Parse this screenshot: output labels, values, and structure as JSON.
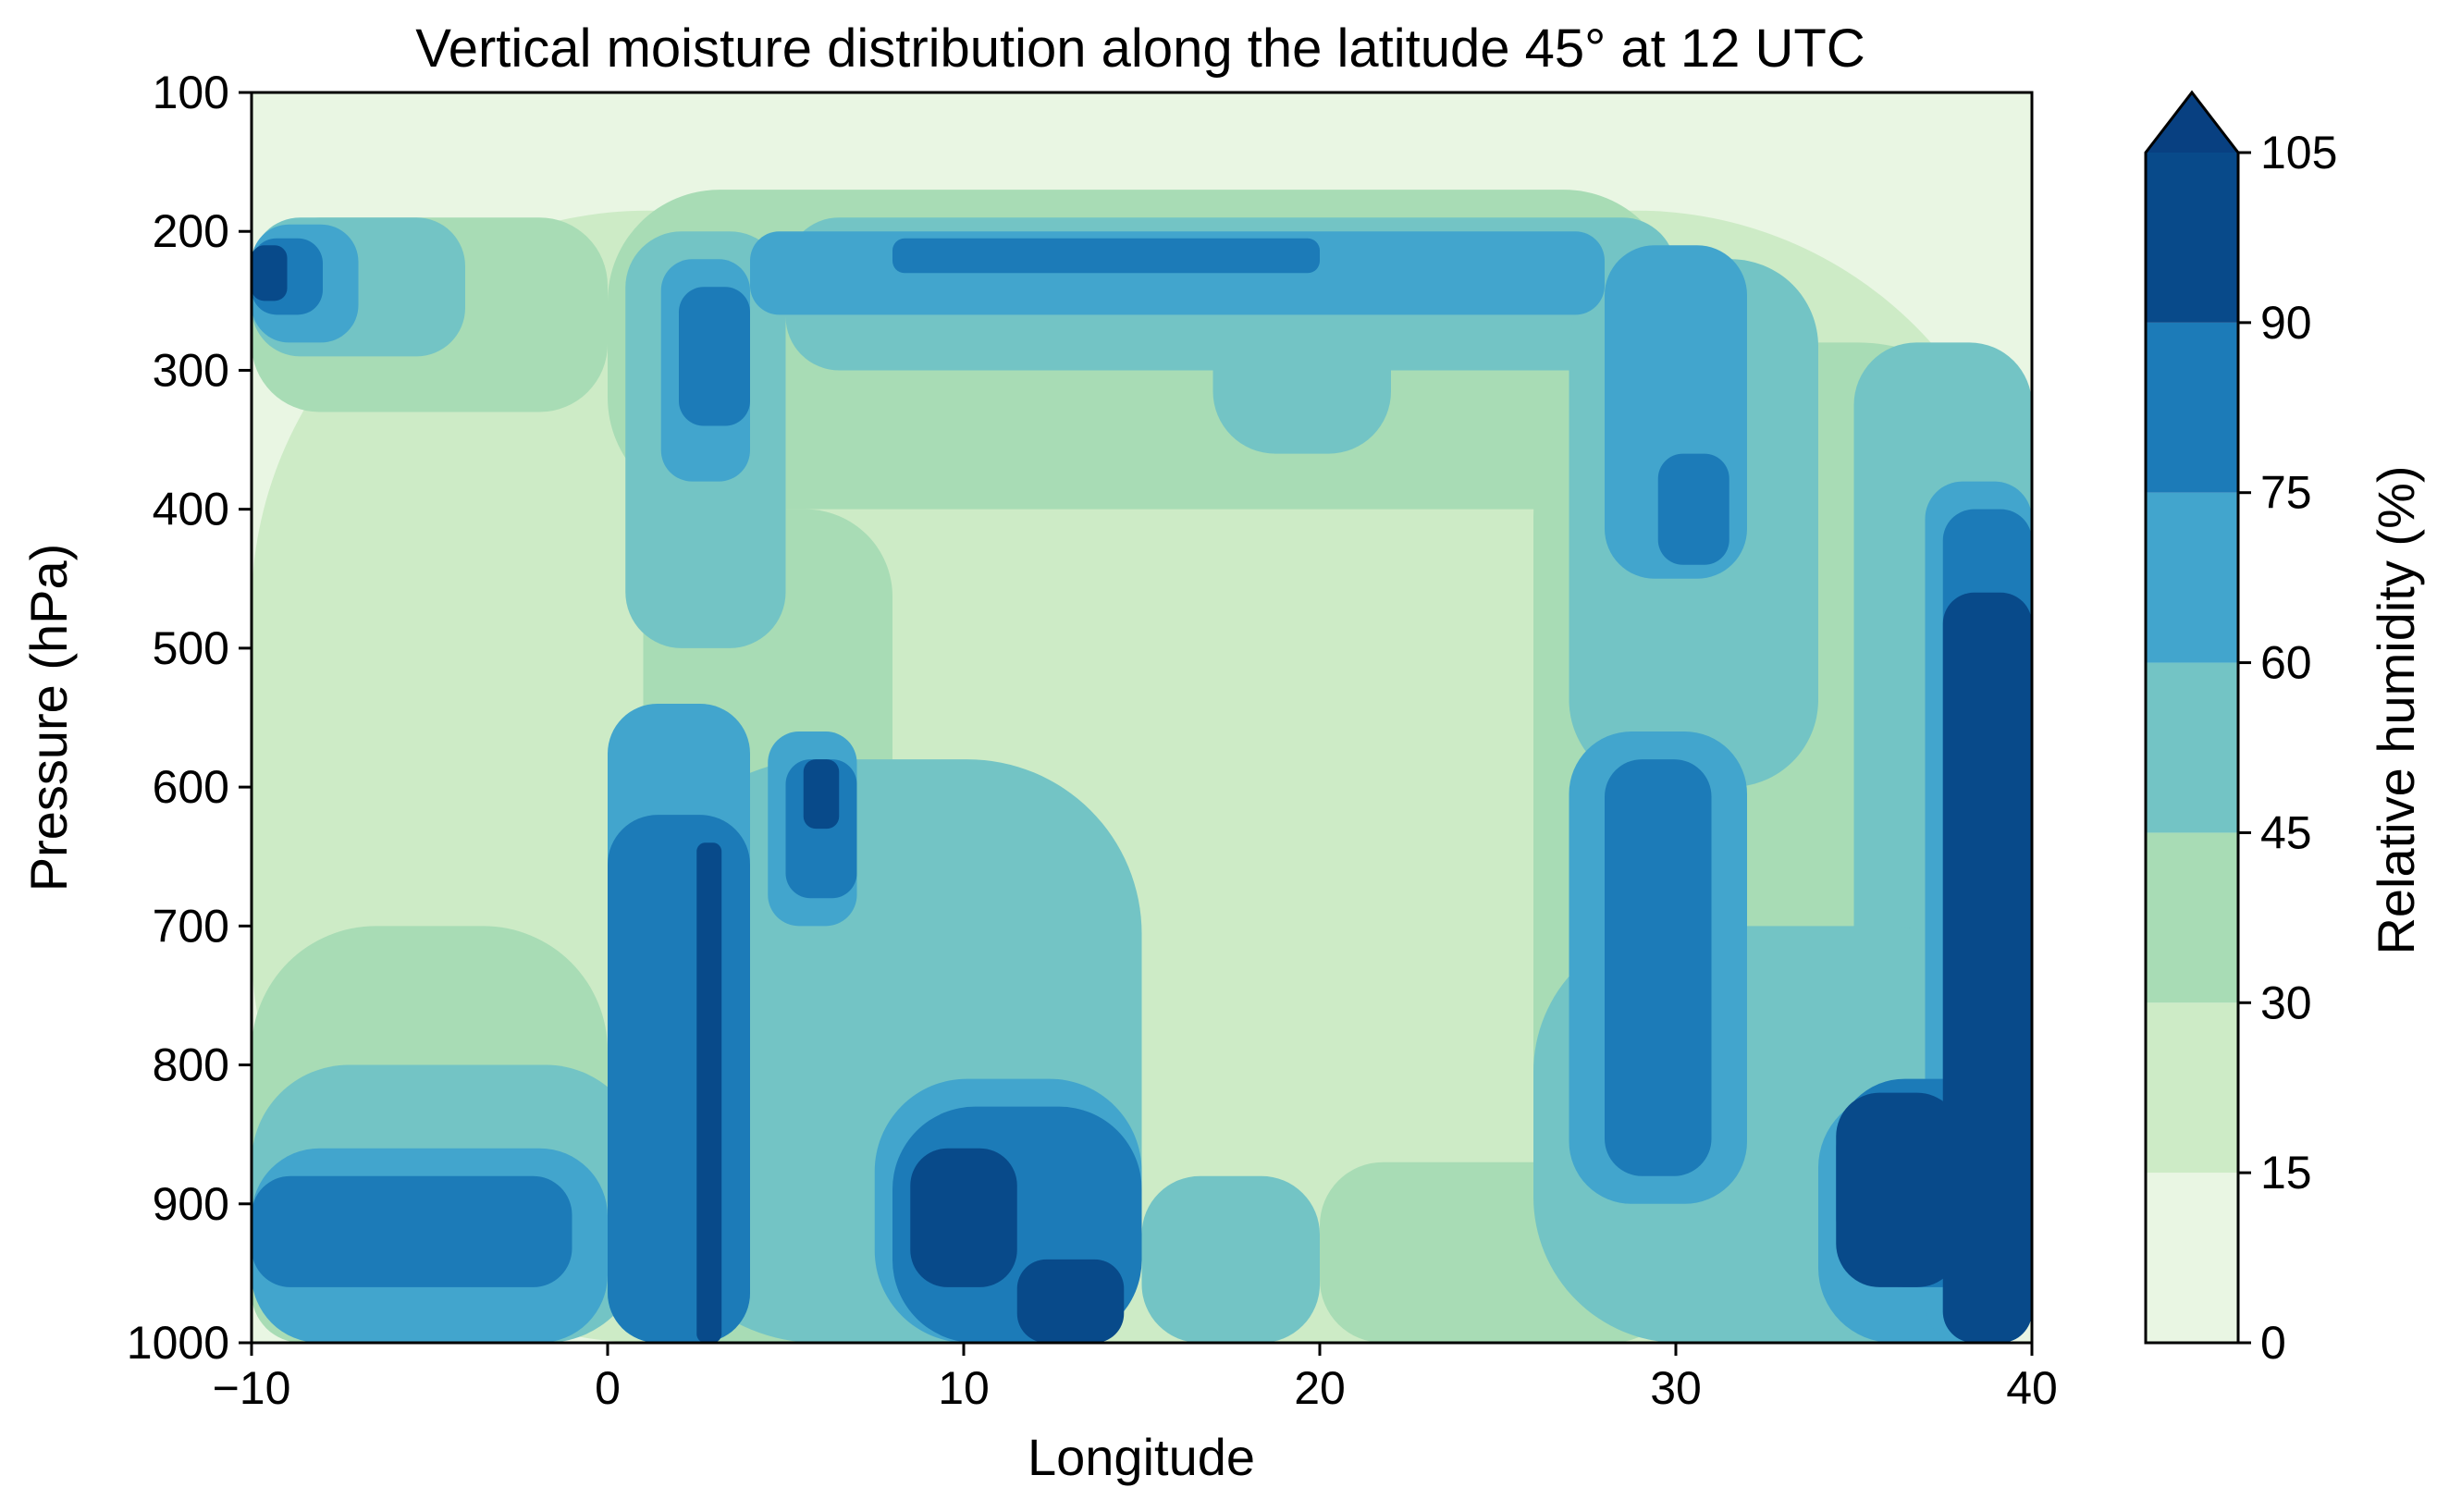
{
  "chart_data": {
    "type": "heatmap",
    "subtype": "filled-contour",
    "title": "Vertical moisture distribution along the latitude 45° at 12 UTC",
    "xlabel": "Longitude",
    "ylabel": "Pressure (hPa)",
    "xlim": [
      -10,
      40
    ],
    "ylim": [
      1000,
      100
    ],
    "y_inverted": true,
    "x_ticks": [
      -10,
      0,
      10,
      20,
      30,
      40
    ],
    "x_tick_labels": [
      "−10",
      "0",
      "10",
      "20",
      "30",
      "40"
    ],
    "y_ticks": [
      100,
      200,
      300,
      400,
      500,
      600,
      700,
      800,
      900,
      1000
    ],
    "y_tick_labels": [
      "100",
      "200",
      "300",
      "400",
      "500",
      "600",
      "700",
      "800",
      "900",
      "1000"
    ],
    "colorbar": {
      "label": "Relative humidity (%)",
      "levels": [
        0,
        15,
        30,
        45,
        60,
        75,
        90,
        105
      ],
      "tick_labels": [
        "0",
        "15",
        "30",
        "45",
        "60",
        "75",
        "90",
        "105"
      ],
      "extend": "max",
      "colors": [
        "#e9f6e3",
        "#cdebc6",
        "#a8dcb5",
        "#73c4c5",
        "#42a5cd",
        "#1c7bb8",
        "#084a8a"
      ],
      "over_color": "#084081"
    },
    "colormap": "GnBu",
    "regions": [
      {
        "level": 1,
        "lon": [
          -10,
          40
        ],
        "p": [
          1000,
          185
        ]
      },
      {
        "level": 2,
        "lon": [
          -10,
          -6
        ],
        "p": [
          1000,
          820
        ]
      },
      {
        "level": 2,
        "lon": [
          -10,
          0
        ],
        "p": [
          330,
          190
        ]
      },
      {
        "level": 2,
        "lon": [
          0,
          30
        ],
        "p": [
          400,
          170
        ]
      },
      {
        "level": 2,
        "lon": [
          1,
          8
        ],
        "p": [
          1000,
          400
        ]
      },
      {
        "level": 2,
        "lon": [
          26,
          40
        ],
        "p": [
          1000,
          280
        ]
      },
      {
        "level": 2,
        "lon": [
          -10,
          0
        ],
        "p": [
          1000,
          700
        ]
      },
      {
        "level": 2,
        "lon": [
          20,
          30
        ],
        "p": [
          1000,
          870
        ]
      },
      {
        "level": 3,
        "lon": [
          -10,
          -4
        ],
        "p": [
          290,
          190
        ]
      },
      {
        "level": 3,
        "lon": [
          0.5,
          5
        ],
        "p": [
          500,
          200
        ]
      },
      {
        "level": 3,
        "lon": [
          5,
          30
        ],
        "p": [
          300,
          190
        ]
      },
      {
        "level": 3,
        "lon": [
          17,
          22
        ],
        "p": [
          360,
          200
        ]
      },
      {
        "level": 3,
        "lon": [
          27,
          34
        ],
        "p": [
          600,
          220
        ]
      },
      {
        "level": 3,
        "lon": [
          35,
          40
        ],
        "p": [
          800,
          280
        ]
      },
      {
        "level": 3,
        "lon": [
          -10,
          1
        ],
        "p": [
          1000,
          800
        ]
      },
      {
        "level": 3,
        "lon": [
          1,
          15
        ],
        "p": [
          1000,
          580
        ]
      },
      {
        "level": 3,
        "lon": [
          15,
          20
        ],
        "p": [
          1000,
          880
        ]
      },
      {
        "level": 3,
        "lon": [
          26,
          40
        ],
        "p": [
          1000,
          700
        ]
      },
      {
        "level": 4,
        "lon": [
          -10,
          -7
        ],
        "p": [
          280,
          195
        ]
      },
      {
        "level": 4,
        "lon": [
          1.5,
          4
        ],
        "p": [
          380,
          220
        ]
      },
      {
        "level": 4,
        "lon": [
          4,
          28
        ],
        "p": [
          260,
          200
        ]
      },
      {
        "level": 4,
        "lon": [
          28,
          32
        ],
        "p": [
          450,
          210
        ]
      },
      {
        "level": 4,
        "lon": [
          -10,
          0
        ],
        "p": [
          1000,
          860
        ]
      },
      {
        "level": 4,
        "lon": [
          0,
          4
        ],
        "p": [
          1000,
          540
        ]
      },
      {
        "level": 4,
        "lon": [
          4.5,
          7
        ],
        "p": [
          700,
          560
        ]
      },
      {
        "level": 4,
        "lon": [
          7.5,
          15
        ],
        "p": [
          1000,
          810
        ]
      },
      {
        "level": 4,
        "lon": [
          27,
          32
        ],
        "p": [
          900,
          560
        ]
      },
      {
        "level": 4,
        "lon": [
          34,
          40
        ],
        "p": [
          1000,
          820
        ]
      },
      {
        "level": 4,
        "lon": [
          37,
          40
        ],
        "p": [
          1000,
          380
        ]
      },
      {
        "level": 5,
        "lon": [
          -10,
          -8
        ],
        "p": [
          260,
          205
        ]
      },
      {
        "level": 5,
        "lon": [
          2,
          4
        ],
        "p": [
          340,
          240
        ]
      },
      {
        "level": 5,
        "lon": [
          8,
          20
        ],
        "p": [
          230,
          205
        ]
      },
      {
        "level": 5,
        "lon": [
          29.5,
          31.5
        ],
        "p": [
          440,
          360
        ]
      },
      {
        "level": 5,
        "lon": [
          -10,
          -1
        ],
        "p": [
          960,
          880
        ]
      },
      {
        "level": 5,
        "lon": [
          0,
          4
        ],
        "p": [
          1000,
          620
        ]
      },
      {
        "level": 5,
        "lon": [
          5,
          7
        ],
        "p": [
          680,
          580
        ]
      },
      {
        "level": 5,
        "lon": [
          8,
          15
        ],
        "p": [
          1000,
          830
        ]
      },
      {
        "level": 5,
        "lon": [
          28,
          31
        ],
        "p": [
          880,
          580
        ]
      },
      {
        "level": 5,
        "lon": [
          34.5,
          40
        ],
        "p": [
          960,
          810
        ]
      },
      {
        "level": 5,
        "lon": [
          37.5,
          40
        ],
        "p": [
          1000,
          400
        ]
      },
      {
        "level": 6,
        "lon": [
          -10,
          -9
        ],
        "p": [
          250,
          210
        ]
      },
      {
        "level": 6,
        "lon": [
          2.5,
          3.2
        ],
        "p": [
          1000,
          640
        ]
      },
      {
        "level": 6,
        "lon": [
          5.5,
          6.5
        ],
        "p": [
          630,
          580
        ]
      },
      {
        "level": 6,
        "lon": [
          8.5,
          11.5
        ],
        "p": [
          960,
          860
        ]
      },
      {
        "level": 6,
        "lon": [
          11.5,
          14.5
        ],
        "p": [
          1000,
          940
        ]
      },
      {
        "level": 6,
        "lon": [
          34.5,
          38
        ],
        "p": [
          960,
          820
        ]
      },
      {
        "level": 6,
        "lon": [
          37.5,
          40
        ],
        "p": [
          1000,
          460
        ]
      }
    ]
  }
}
